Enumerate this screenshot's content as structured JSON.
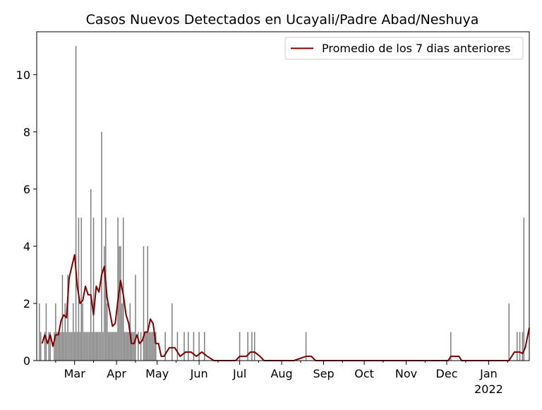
{
  "chart_data": {
    "type": "bar",
    "title": "Casos Nuevos Detectados en Ucayali/Padre Abad/Neshuya",
    "xlabel": "",
    "ylabel": "",
    "x_range": [
      "2021-02-01",
      "2022-01-31"
    ],
    "ylim": [
      0,
      11.5
    ],
    "yticks": [
      0,
      2,
      4,
      6,
      8,
      10
    ],
    "xticks": [
      {
        "date": "2021-03-01",
        "label": "Mar"
      },
      {
        "date": "2021-04-01",
        "label": "Apr"
      },
      {
        "date": "2021-05-01",
        "label": "May"
      },
      {
        "date": "2021-06-01",
        "label": "Jun"
      },
      {
        "date": "2021-07-01",
        "label": "Jul"
      },
      {
        "date": "2021-08-01",
        "label": "Aug"
      },
      {
        "date": "2021-09-01",
        "label": "Sep"
      },
      {
        "date": "2021-10-01",
        "label": "Oct"
      },
      {
        "date": "2021-11-01",
        "label": "Nov"
      },
      {
        "date": "2021-12-01",
        "label": "Dec"
      },
      {
        "date": "2022-01-01",
        "label": "Jan",
        "sublabel": "2022"
      }
    ],
    "grid": false,
    "legend_position": "top-right",
    "bar_color": "#808080",
    "line_color": "#800000",
    "series": [
      {
        "kind": "bar",
        "x": [
          "2021-02-03",
          "2021-02-04",
          "2021-02-07",
          "2021-02-08",
          "2021-02-10",
          "2021-02-11",
          "2021-02-14",
          "2021-02-15",
          "2021-02-16",
          "2021-02-17",
          "2021-02-18",
          "2021-02-19",
          "2021-02-20",
          "2021-02-21",
          "2021-02-22",
          "2021-02-23",
          "2021-02-24",
          "2021-02-25",
          "2021-02-26",
          "2021-02-27",
          "2021-02-28",
          "2021-03-01",
          "2021-03-02",
          "2021-03-03",
          "2021-03-04",
          "2021-03-05",
          "2021-03-06",
          "2021-03-07",
          "2021-03-08",
          "2021-03-09",
          "2021-03-10",
          "2021-03-11",
          "2021-03-12",
          "2021-03-13",
          "2021-03-14",
          "2021-03-15",
          "2021-03-16",
          "2021-03-17",
          "2021-03-18",
          "2021-03-19",
          "2021-03-20",
          "2021-03-21",
          "2021-03-22",
          "2021-03-23",
          "2021-03-24",
          "2021-03-25",
          "2021-03-26",
          "2021-03-27",
          "2021-03-28",
          "2021-03-29",
          "2021-03-30",
          "2021-03-31",
          "2021-04-01",
          "2021-04-02",
          "2021-04-03",
          "2021-04-04",
          "2021-04-05",
          "2021-04-06",
          "2021-04-07",
          "2021-04-08",
          "2021-04-09",
          "2021-04-10",
          "2021-04-11",
          "2021-04-12",
          "2021-04-13",
          "2021-04-14",
          "2021-04-15",
          "2021-04-17",
          "2021-04-19",
          "2021-04-21",
          "2021-04-22",
          "2021-04-23",
          "2021-04-24",
          "2021-04-25",
          "2021-04-26",
          "2021-04-27",
          "2021-04-28",
          "2021-04-29",
          "2021-04-30",
          "2021-05-07",
          "2021-05-12",
          "2021-05-16",
          "2021-05-21",
          "2021-05-24",
          "2021-05-28",
          "2021-06-01",
          "2021-06-05",
          "2021-07-01",
          "2021-07-07",
          "2021-07-10",
          "2021-07-12",
          "2021-08-19",
          "2021-12-04",
          "2022-01-16",
          "2022-01-22",
          "2022-01-24",
          "2022-01-26",
          "2022-01-27"
        ],
        "values": [
          2,
          1,
          1,
          2,
          1,
          1,
          1,
          2,
          1,
          1,
          1,
          1,
          3,
          1,
          2,
          1,
          3,
          1,
          1,
          1,
          2,
          1,
          11,
          1,
          5,
          1,
          5,
          2,
          1,
          1,
          1,
          1,
          1,
          6,
          1,
          5,
          1,
          1,
          1,
          1,
          1,
          8,
          1,
          4,
          5,
          2,
          1,
          1,
          1,
          1,
          1,
          1,
          1,
          5,
          4,
          4,
          2,
          5,
          1,
          1,
          1,
          1,
          2,
          1,
          1,
          1,
          3,
          1,
          1,
          4,
          1,
          1,
          4,
          1,
          1,
          1,
          1,
          1,
          1,
          1,
          2,
          1,
          1,
          1,
          1,
          1,
          1,
          1,
          1,
          1,
          1,
          1,
          1,
          2,
          1,
          1,
          1,
          5
        ]
      },
      {
        "kind": "line",
        "name": "Promedio de los 7 dias anteriores",
        "x": [
          "2021-02-05",
          "2021-02-07",
          "2021-02-09",
          "2021-02-11",
          "2021-02-13",
          "2021-02-15",
          "2021-02-17",
          "2021-02-19",
          "2021-02-21",
          "2021-02-23",
          "2021-02-25",
          "2021-02-27",
          "2021-03-01",
          "2021-03-03",
          "2021-03-05",
          "2021-03-07",
          "2021-03-09",
          "2021-03-11",
          "2021-03-13",
          "2021-03-15",
          "2021-03-17",
          "2021-03-19",
          "2021-03-21",
          "2021-03-23",
          "2021-03-25",
          "2021-03-27",
          "2021-03-29",
          "2021-03-31",
          "2021-04-02",
          "2021-04-04",
          "2021-04-06",
          "2021-04-08",
          "2021-04-10",
          "2021-04-12",
          "2021-04-14",
          "2021-04-16",
          "2021-04-18",
          "2021-04-20",
          "2021-04-22",
          "2021-04-24",
          "2021-04-26",
          "2021-04-28",
          "2021-04-30",
          "2021-05-02",
          "2021-05-04",
          "2021-05-06",
          "2021-05-10",
          "2021-05-14",
          "2021-05-18",
          "2021-05-22",
          "2021-05-26",
          "2021-05-30",
          "2021-06-03",
          "2021-06-07",
          "2021-06-12",
          "2021-06-20",
          "2021-06-28",
          "2021-07-01",
          "2021-07-06",
          "2021-07-09",
          "2021-07-12",
          "2021-07-16",
          "2021-07-19",
          "2021-07-25",
          "2021-08-10",
          "2021-08-19",
          "2021-08-23",
          "2021-08-26",
          "2021-09-10",
          "2021-11-10",
          "2021-12-02",
          "2021-12-04",
          "2021-12-10",
          "2021-12-12",
          "2021-12-20",
          "2022-01-10",
          "2022-01-16",
          "2022-01-20",
          "2022-01-22",
          "2022-01-24",
          "2022-01-26",
          "2022-01-28",
          "2022-01-31"
        ],
        "values": [
          0.6,
          0.9,
          0.6,
          0.9,
          0.5,
          0.9,
          0.9,
          1.4,
          1.6,
          1.5,
          2.9,
          3.3,
          3.7,
          2.6,
          2.0,
          2.1,
          2.6,
          2.3,
          2.3,
          1.6,
          2.6,
          2.4,
          3.0,
          3.3,
          2.2,
          1.7,
          1.2,
          1.3,
          2.1,
          2.8,
          2.3,
          1.6,
          1.3,
          0.6,
          0.6,
          0.9,
          0.6,
          0.7,
          1.0,
          1.0,
          1.45,
          1.3,
          0.6,
          0.6,
          0.15,
          0.15,
          0.45,
          0.45,
          0.15,
          0.3,
          0.3,
          0.15,
          0.3,
          0.15,
          0.0,
          0.0,
          0.0,
          0.15,
          0.15,
          0.3,
          0.3,
          0.15,
          0.0,
          0.0,
          0.0,
          0.15,
          0.15,
          0.0,
          0.0,
          0.0,
          0.0,
          0.15,
          0.15,
          0.0,
          0.0,
          0.0,
          0.0,
          0.3,
          0.3,
          0.3,
          0.25,
          0.45,
          1.15
        ]
      }
    ]
  }
}
